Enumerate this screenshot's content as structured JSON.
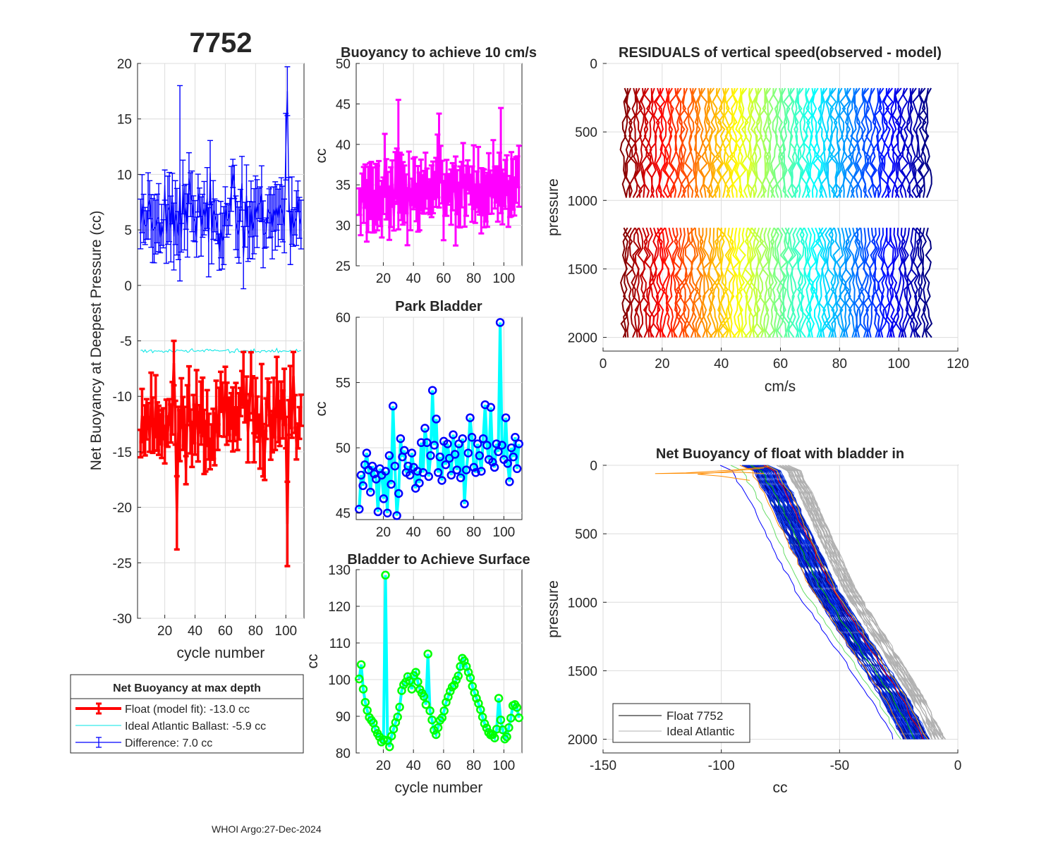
{
  "figure": {
    "float_id": "7752",
    "footer": "WHOI Argo:27-Dec-2024"
  },
  "colors": {
    "float": "#ff0000",
    "ideal": "#00e5e5",
    "difference": "#0000ff",
    "buoyancy": "#ff00ff",
    "bladder_line": "#00ffff",
    "park_marker": "#0000ff",
    "surface_marker": "#00ff00",
    "ideal_profile": "#b0b0b0"
  },
  "legend": {
    "title": "Net Buoyancy at max depth",
    "float": "Float (model fit): -13.0 cc",
    "ideal": "Ideal Atlantic Ballast:  -5.9 cc",
    "difference": "Difference:   7.0 cc"
  },
  "profile_legend": {
    "float": "Float 7752",
    "ideal": "Ideal Atlantic"
  },
  "chart_data": [
    {
      "id": "net",
      "type": "line",
      "title": "7752",
      "xlabel": "cycle number",
      "ylabel": "Net Buoyancy at Deepest Pressure (cc)",
      "xlim": [
        2,
        112
      ],
      "ylim": [
        -30,
        20
      ],
      "xticks": [
        20,
        40,
        60,
        80,
        100
      ],
      "yticks": [
        20,
        15,
        10,
        5,
        0,
        -5,
        -10,
        -15,
        -20,
        -25,
        -30
      ],
      "series": [
        {
          "name": "Float (model fit)",
          "mean": -12.2,
          "amp": 2.5,
          "err": 2.0,
          "seed": 11,
          "spikes": [
            {
              "x": 28,
              "y": -20.5,
              "e": 3.3
            },
            {
              "x": 101,
              "y": -21.5,
              "e": 3.8
            },
            {
              "x": 72,
              "y": -8.5,
              "e": 2.5
            },
            {
              "x": 26,
              "y": -7.0,
              "e": 2.0
            }
          ]
        },
        {
          "name": "Ideal Atlantic Ballast",
          "mean": -5.9,
          "amp": 0.15,
          "err": 0,
          "seed": 3,
          "spikes": []
        },
        {
          "name": "Difference",
          "mean": 6.5,
          "amp": 2.3,
          "err": 2.2,
          "seed": 23,
          "spikes": [
            {
              "x": 30,
              "y": 9.2,
              "e": 8.8
            },
            {
              "x": 101,
              "y": 17.5,
              "e": 2.2
            },
            {
              "x": 72,
              "y": 2.5,
              "e": 2.8
            },
            {
              "x": 100,
              "y": 12.5,
              "e": 3.0
            }
          ]
        }
      ]
    },
    {
      "id": "buoy",
      "type": "line",
      "title": "Buoyancy to achieve 10 cm/s",
      "xlabel": "",
      "ylabel": "cc",
      "xlim": [
        2,
        112
      ],
      "ylim": [
        25,
        50
      ],
      "xticks": [
        20,
        40,
        60,
        80,
        100
      ],
      "yticks": [
        50,
        45,
        40,
        35,
        30,
        25
      ],
      "series": [
        {
          "name": "Buoyancy",
          "mean": 34.3,
          "amp": 2.3,
          "err": 2.8,
          "seed": 37,
          "spikes": [
            {
              "x": 30,
              "y": 37.5,
              "e": 8.0
            },
            {
              "x": 98,
              "y": 38.0,
              "e": 6.5
            },
            {
              "x": 57,
              "y": 38.0,
              "e": 5.8
            },
            {
              "x": 68,
              "y": 33.0,
              "e": 5.5
            },
            {
              "x": 19,
              "y": 32.0,
              "e": 3.5
            }
          ]
        }
      ]
    },
    {
      "id": "park",
      "type": "line",
      "title": "Park Bladder",
      "xlabel": "",
      "ylabel": "cc",
      "xlim": [
        2,
        112
      ],
      "ylim": [
        44.5,
        60
      ],
      "xticks": [
        20,
        40,
        60,
        80,
        100
      ],
      "yticks": [
        60,
        55,
        50,
        45
      ],
      "values": [
        45.3,
        47.9,
        47.1,
        48.7,
        49.6,
        48.3,
        46.6,
        48.6,
        48.0,
        47.6,
        45.1,
        48.4,
        47.9,
        46.1,
        48.2,
        45.0,
        49.4,
        47.2,
        53.2,
        48.6,
        44.8,
        46.5,
        50.7,
        49.3,
        49.8,
        48.1,
        48.6,
        47.9,
        49.6,
        48.5,
        46.9,
        48.2,
        47.3,
        50.4,
        48.1,
        51.5,
        50.4,
        47.8,
        49.4,
        54.4,
        50.2,
        52.2,
        48.1,
        49.3,
        47.5,
        50.5,
        48.7,
        50.3,
        49.2,
        47.9,
        51.0,
        49.5,
        48.3,
        50.3,
        47.7,
        50.7,
        45.7,
        48.3,
        49.6,
        52.3,
        50.8,
        48.5,
        48.1,
        50.3,
        49.4,
        48.2,
        50.7,
        53.3,
        50.2,
        49.1,
        53.1,
        48.9,
        48.5,
        50.3,
        49.7,
        59.6,
        50.2,
        49.1,
        52.3,
        48.8,
        47.4,
        50.0,
        49.3,
        50.8,
        48.4,
        50.3
      ]
    },
    {
      "id": "surf",
      "type": "line",
      "title": "Bladder to Achieve Surface",
      "xlabel": "cycle number",
      "ylabel": "cc",
      "xlim": [
        2,
        112
      ],
      "ylim": [
        80,
        130
      ],
      "xticks": [
        20,
        40,
        60,
        80,
        100
      ],
      "yticks": [
        130,
        120,
        110,
        100,
        90,
        80
      ],
      "values": [
        100.2,
        104.1,
        97.4,
        93.8,
        91.6,
        89.7,
        88.9,
        88.2,
        86.4,
        85.3,
        84.4,
        83.0,
        83.6,
        128.5,
        83.4,
        81.7,
        84.6,
        86.5,
        88.3,
        89.8,
        92.5,
        97.0,
        98.6,
        99.3,
        100.8,
        99.7,
        97.4,
        101.1,
        102.0,
        99.4,
        97.3,
        96.3,
        95.4,
        93.2,
        107.0,
        91.5,
        89.0,
        86.2,
        85.0,
        86.9,
        88.9,
        89.6,
        91.5,
        93.8,
        95.3,
        96.8,
        98.0,
        98.5,
        99.9,
        101.0,
        103.6,
        105.8,
        105.1,
        103.6,
        102.0,
        100.5,
        98.2,
        96.4,
        94.9,
        93.5,
        91.8,
        89.8,
        88.0,
        86.8,
        85.6,
        84.9,
        85.0,
        84.1,
        86.5,
        94.9,
        89.0,
        86.3,
        83.8,
        84.4,
        86.9,
        89.5,
        92.9,
        93.2,
        92.4,
        89.6
      ]
    },
    {
      "id": "resid",
      "type": "line",
      "title": "RESIDUALS of vertical speed(observed - model)",
      "xlabel": "cm/s",
      "ylabel": "pressure",
      "xlim": [
        0,
        120
      ],
      "ylim": [
        0,
        2100
      ],
      "xticks": [
        0,
        20,
        40,
        60,
        80,
        100,
        120
      ],
      "yticks": [
        0,
        500,
        1000,
        1500,
        2000
      ],
      "n_profiles": 104,
      "offset_start": 7,
      "offset_step": 1,
      "segments": [
        [
          180,
          1000
        ],
        [
          1200,
          2000
        ]
      ]
    },
    {
      "id": "prof",
      "type": "line",
      "title": "Net Buoyancy of float with bladder in",
      "xlabel": "cc",
      "ylabel": "pressure",
      "xlim": [
        -150,
        0
      ],
      "ylim": [
        0,
        2100
      ],
      "xticks": [
        -150,
        -100,
        -50,
        0
      ],
      "yticks": [
        0,
        500,
        1000,
        1500,
        2000
      ],
      "main_curve": {
        "x": [
          -82,
          -77,
          -75,
          -72,
          -64,
          -53,
          -38,
          -23,
          -14
        ],
        "y": [
          0,
          40,
          120,
          200,
          500,
          900,
          1300,
          1700,
          2000
        ]
      },
      "spread": [
        -9,
        2
      ]
    }
  ]
}
